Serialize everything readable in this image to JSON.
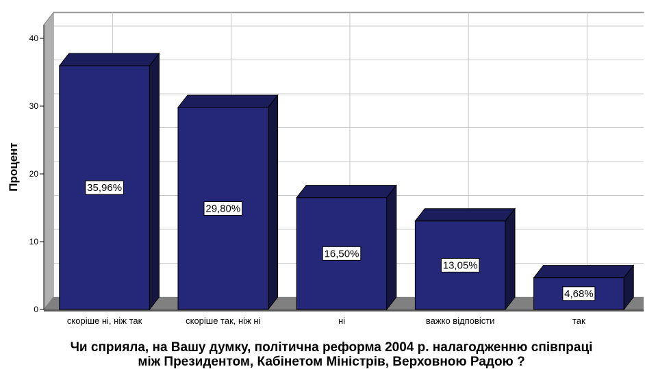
{
  "chart_data": {
    "type": "bar",
    "categories": [
      "скоріше ні, ніж так",
      "скоріше так, ніж ні",
      "ні",
      "важко відповісти",
      "так"
    ],
    "values": [
      35.96,
      29.8,
      16.5,
      13.05,
      4.68
    ],
    "data_labels": [
      "35,96%",
      "29,80%",
      "16,50%",
      "13,05%",
      "4,68%"
    ],
    "ylabel": "Процент",
    "xlabel_lines": [
      "Чи сприяла, на Вашу думку, політична реформа 2004 р. налагодженню співпраці",
      "між Президентом, Кабінетом Міністрів, Верховною Радою ?"
    ],
    "yticks": [
      "0",
      "10",
      "20",
      "30",
      "40"
    ],
    "ylim": [
      0,
      40
    ],
    "grid": true,
    "three_d": true,
    "colors": {
      "bar_front": "#252878",
      "bar_top": "#1c1e5c",
      "bar_side": "#14163f",
      "floor": "#808080",
      "wall_edge": "#9a9a9a",
      "grid": "#c8c8c8"
    }
  }
}
